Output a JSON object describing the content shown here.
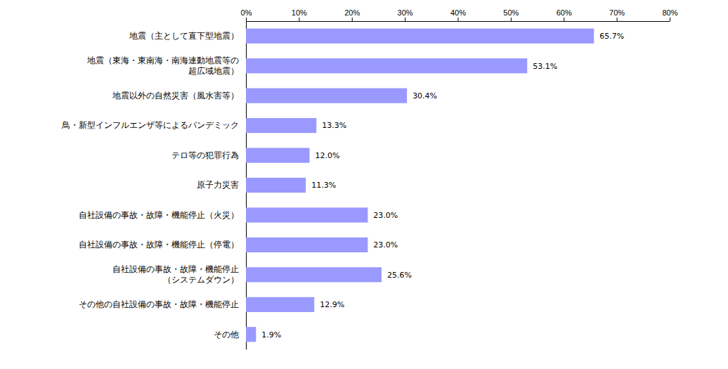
{
  "chart_data": {
    "type": "bar",
    "orientation": "horizontal",
    "categories": [
      "地震（主として直下型地震）",
      "地震（東海・東南海・南海連動地震等の\n超広域地震）",
      "地震以外の自然災害（風水害等）",
      "鳥・新型インフルエンザ等によるパンデミック",
      "テロ等の犯罪行為",
      "原子力災害",
      "自社設備の事故・故障・機能停止（火災）",
      "自社設備の事故・故障・機能停止（停電）",
      "自社設備の事故・故障・機能停止\n（システムダウン）",
      "その他の自社設備の事故・故障・機能停止",
      "その他"
    ],
    "values": [
      65.7,
      53.1,
      30.4,
      13.3,
      12.0,
      11.3,
      23.0,
      23.0,
      25.6,
      12.9,
      1.9
    ],
    "value_labels": [
      "65.7%",
      "53.1%",
      "30.4%",
      "13.3%",
      "12.0%",
      "11.3%",
      "23.0%",
      "23.0%",
      "25.6%",
      "12.9%",
      "1.9%"
    ],
    "data_labels": true,
    "color": "#9999FF",
    "grid": false,
    "xlim": [
      0,
      80
    ],
    "xticks": [
      {
        "value": 0,
        "label": "0%"
      },
      {
        "value": 10,
        "label": "10%"
      },
      {
        "value": 20,
        "label": "20%"
      },
      {
        "value": 30,
        "label": "30%"
      },
      {
        "value": 40,
        "label": "40%"
      },
      {
        "value": 50,
        "label": "50%"
      },
      {
        "value": 60,
        "label": "60%"
      },
      {
        "value": 70,
        "label": "70%"
      },
      {
        "value": 80,
        "label": "80%"
      }
    ]
  }
}
